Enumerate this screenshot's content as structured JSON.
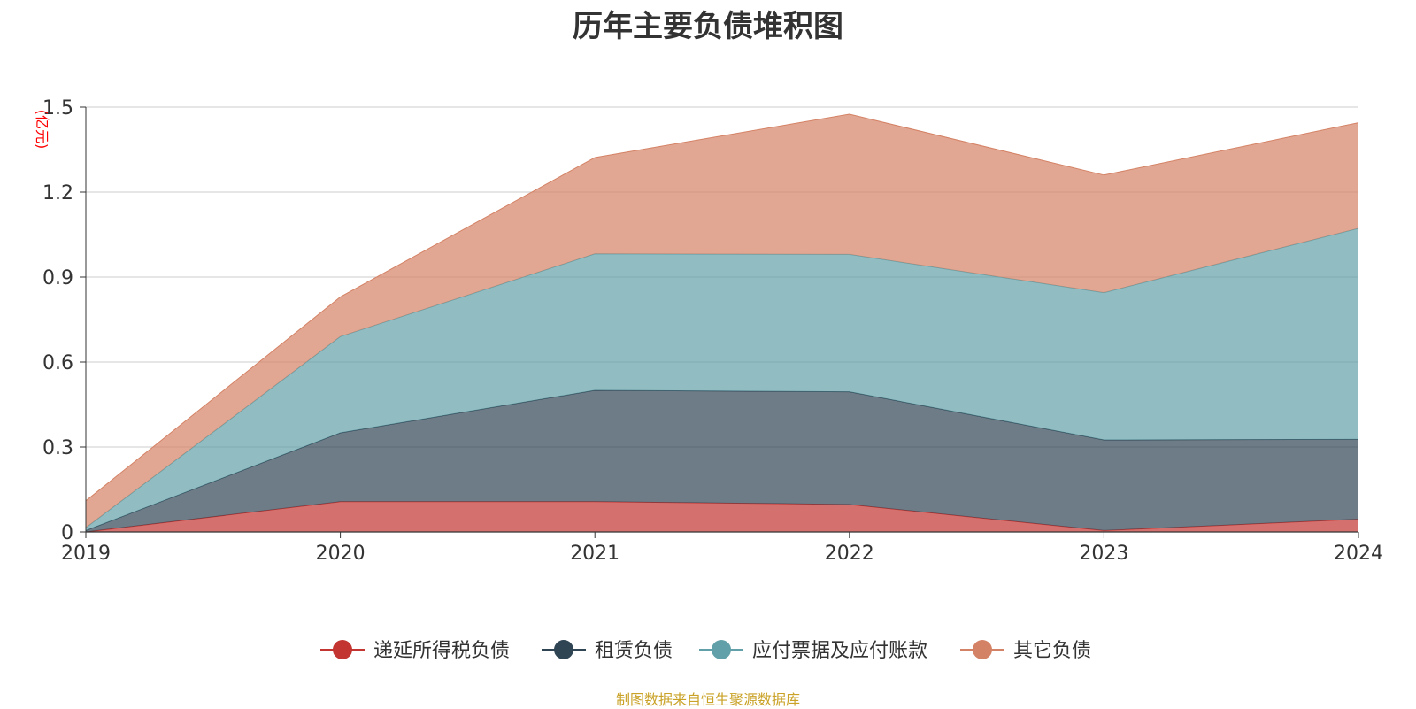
{
  "chart_data": {
    "type": "area",
    "stacked": true,
    "title": "历年主要负债堆积图",
    "unit_label": "(亿元)",
    "x": [
      "2019",
      "2020",
      "2021",
      "2022",
      "2023",
      "2024"
    ],
    "ylim": [
      0,
      1.5
    ],
    "y_ticks": [
      "0",
      "0.3",
      "0.6",
      "0.9",
      "1.2",
      "1.5"
    ],
    "grid": true,
    "legend_position": "bottom",
    "series": [
      {
        "name": "递延所得税负债",
        "color": "#c23531",
        "values": [
          0.0,
          0.107,
          0.107,
          0.097,
          0.005,
          0.045
        ]
      },
      {
        "name": "租赁负债",
        "color": "#2f4554",
        "values": [
          0.005,
          0.243,
          0.393,
          0.398,
          0.32,
          0.282
        ]
      },
      {
        "name": "应付票据及应付账款",
        "color": "#61a0a8",
        "values": [
          0.01,
          0.34,
          0.482,
          0.485,
          0.52,
          0.745
        ]
      },
      {
        "name": "其它负债",
        "color": "#d48265",
        "values": [
          0.095,
          0.14,
          0.34,
          0.495,
          0.415,
          0.373
        ]
      }
    ],
    "source": "制图数据来自恒生聚源数据库"
  }
}
